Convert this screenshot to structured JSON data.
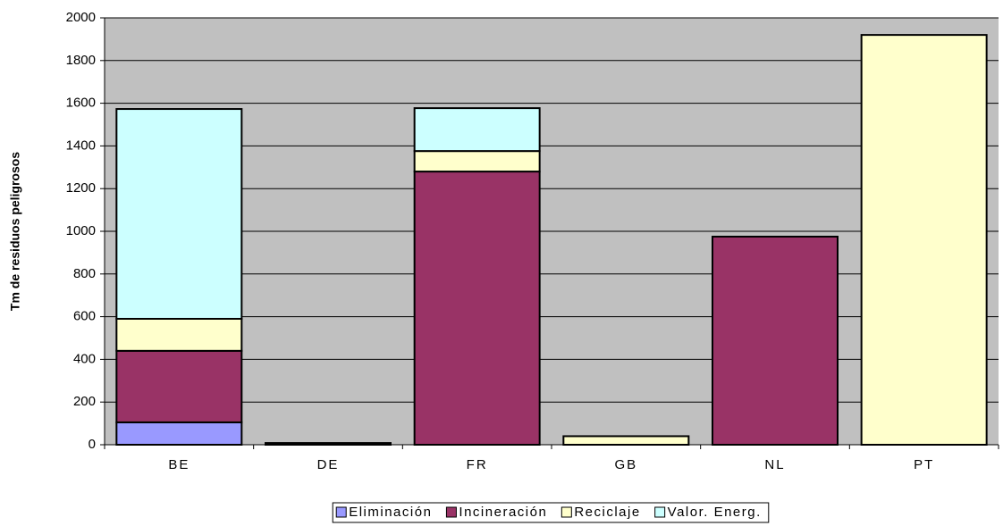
{
  "chart_data": {
    "type": "stacked_bar",
    "y_label": "Tm de residuos peligrosos",
    "categories": [
      "BE",
      "DE",
      "FR",
      "GB",
      "NL",
      "PT"
    ],
    "series": [
      {
        "name": "Eliminación",
        "color": "#9999ff",
        "values": [
          105,
          0,
          0,
          0,
          0,
          0
        ]
      },
      {
        "name": "Incineración",
        "color": "#993366",
        "values": [
          335,
          8,
          1280,
          0,
          975,
          0
        ]
      },
      {
        "name": "Reciclaje",
        "color": "#ffffcc",
        "values": [
          150,
          0,
          96,
          40,
          0,
          1920
        ]
      },
      {
        "name": "Valor. Energ.",
        "color": "#ccffff",
        "values": [
          983,
          0,
          201,
          0,
          0,
          0
        ]
      }
    ],
    "ylim": [
      0,
      2000
    ],
    "yticks": [
      0,
      200,
      400,
      600,
      800,
      1000,
      1200,
      1400,
      1600,
      1800,
      2000
    ],
    "grid": true,
    "legend": "bottom"
  }
}
